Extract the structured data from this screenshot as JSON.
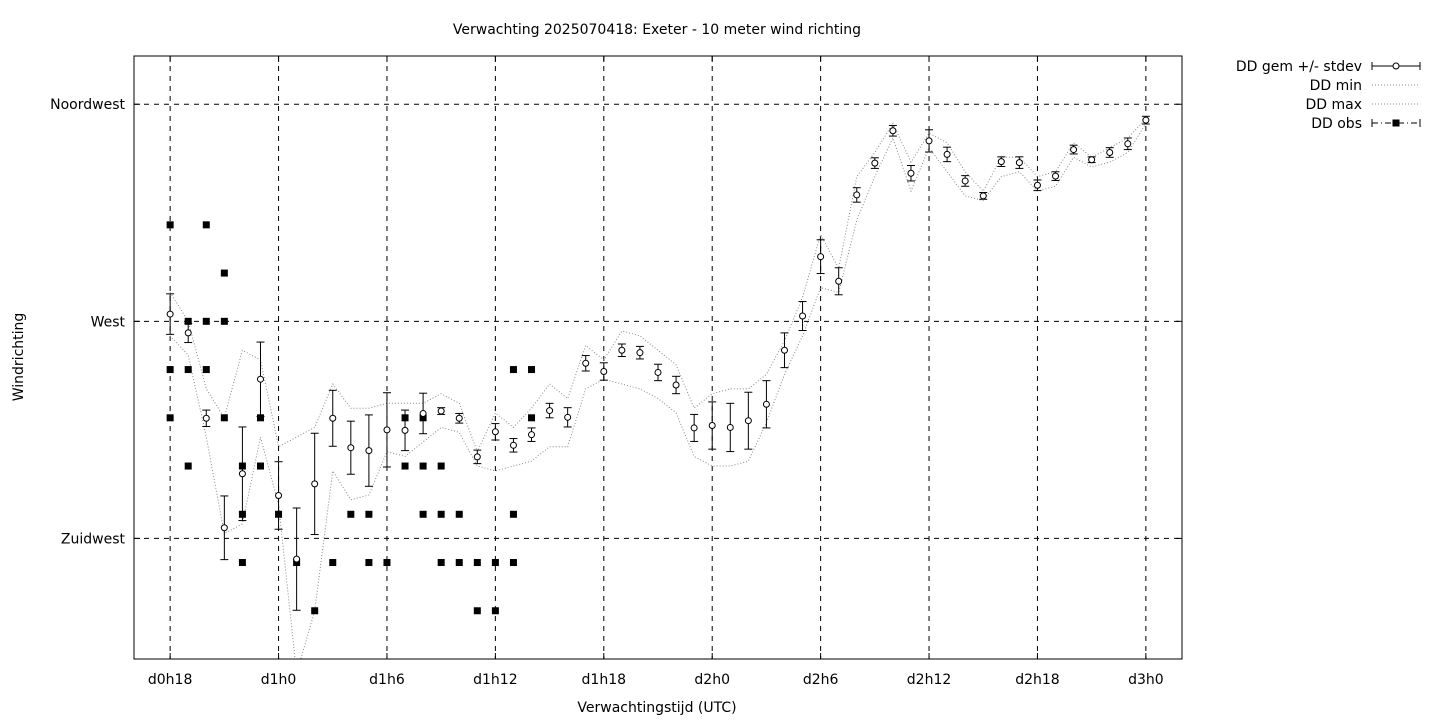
{
  "chart_data": {
    "type": "scatter",
    "title": "Verwachting 2025070418: Exeter - 10 meter wind richting",
    "xlabel": "Verwachtingstijd (UTC)",
    "ylabel": "Windrichting",
    "x_unit": "hours",
    "xlim": [
      16,
      74
    ],
    "ylim": [
      200,
      325
    ],
    "x_ticks": [
      {
        "value": 18,
        "label": "d0h18"
      },
      {
        "value": 24,
        "label": "d1h0"
      },
      {
        "value": 30,
        "label": "d1h6"
      },
      {
        "value": 36,
        "label": "d1h12"
      },
      {
        "value": 42,
        "label": "d1h18"
      },
      {
        "value": 48,
        "label": "d2h0"
      },
      {
        "value": 54,
        "label": "d2h6"
      },
      {
        "value": 60,
        "label": "d2h12"
      },
      {
        "value": 66,
        "label": "d2h18"
      },
      {
        "value": 72,
        "label": "d3h0"
      }
    ],
    "y_ticks": [
      {
        "value": 225,
        "label": "Zuidwest"
      },
      {
        "value": 270,
        "label": "West"
      },
      {
        "value": 315,
        "label": "Noordwest"
      }
    ],
    "grid": true,
    "legend_position": "outside-top-right",
    "series": [
      {
        "name": "DD gem +/- stdev",
        "style": "errorbars-open-circle",
        "x": [
          18,
          19,
          20,
          21,
          22,
          23,
          24,
          25,
          26,
          27,
          28,
          29,
          30,
          31,
          32,
          33,
          34,
          35,
          36,
          37,
          38,
          39,
          40,
          41,
          42,
          43,
          44,
          45,
          46,
          47,
          48,
          49,
          50,
          51,
          52,
          53,
          54,
          55,
          56,
          57,
          58,
          59,
          60,
          61,
          62,
          63,
          64,
          65,
          66,
          67,
          68,
          69,
          70,
          71,
          72
        ],
        "mean": [
          271.5,
          267.6,
          249.9,
          227.2,
          238.4,
          258.0,
          233.9,
          220.7,
          236.3,
          249.9,
          243.8,
          243.2,
          247.5,
          247.4,
          250.9,
          251.4,
          249.9,
          241.9,
          247.1,
          244.3,
          246.5,
          251.5,
          250.1,
          261.3,
          259.6,
          264.0,
          263.5,
          259.4,
          256.8,
          247.9,
          248.4,
          248.0,
          249.4,
          252.8,
          264.0,
          271.1,
          283.4,
          278.3,
          296.2,
          302.8,
          309.5,
          300.7,
          307.4,
          304.6,
          299.1,
          296.0,
          303.1,
          302.9,
          298.2,
          300.1,
          305.6,
          303.5,
          305.0,
          306.8,
          311.7
        ],
        "stdev": [
          4.2,
          2.0,
          1.7,
          6.6,
          9.7,
          7.7,
          7.0,
          10.6,
          10.5,
          5.8,
          5.5,
          7.4,
          7.7,
          4.2,
          4.2,
          0.7,
          1.0,
          1.4,
          1.7,
          1.4,
          1.4,
          1.5,
          2.0,
          1.6,
          1.8,
          1.3,
          1.3,
          1.7,
          1.8,
          2.8,
          4.9,
          5.0,
          5.9,
          4.9,
          3.6,
          3.0,
          3.5,
          2.8,
          1.5,
          1.1,
          1.1,
          1.6,
          2.3,
          1.5,
          1.1,
          0.7,
          1.0,
          1.2,
          1.1,
          0.9,
          0.9,
          0.6,
          1.0,
          1.2,
          0.8
        ]
      },
      {
        "name": "DD min",
        "style": "dotted-line",
        "x": [
          18,
          19,
          20,
          21,
          22,
          23,
          24,
          25,
          26,
          27,
          28,
          29,
          30,
          31,
          32,
          33,
          34,
          35,
          36,
          37,
          38,
          39,
          40,
          41,
          42,
          43,
          44,
          45,
          46,
          47,
          48,
          49,
          50,
          51,
          52,
          53,
          54,
          55,
          56,
          57,
          58,
          59,
          60,
          61,
          62,
          63,
          64,
          65,
          66,
          67,
          68,
          69,
          70,
          71,
          72
        ],
        "values": [
          267.0,
          263.0,
          246.0,
          226.0,
          228.0,
          246.0,
          232.0,
          197.0,
          210.0,
          239.0,
          233.0,
          234.0,
          243.0,
          242.0,
          245.0,
          248.0,
          247.0,
          240.0,
          239.0,
          240.0,
          241.0,
          244.0,
          244.0,
          256.0,
          258.0,
          257.0,
          256.0,
          254.0,
          251.0,
          242.0,
          240.0,
          240.0,
          241.0,
          249.0,
          259.0,
          267.0,
          277.0,
          276.0,
          291.0,
          300.0,
          308.0,
          297.0,
          306.0,
          301.0,
          296.0,
          295.0,
          300.0,
          301.0,
          297.0,
          298.0,
          304.0,
          302.0,
          303.0,
          305.0,
          311.0
        ]
      },
      {
        "name": "DD max",
        "style": "dotted-line",
        "x": [
          18,
          19,
          20,
          21,
          22,
          23,
          24,
          25,
          26,
          27,
          28,
          29,
          30,
          31,
          32,
          33,
          34,
          35,
          36,
          37,
          38,
          39,
          40,
          41,
          42,
          43,
          44,
          45,
          46,
          47,
          48,
          49,
          50,
          51,
          52,
          53,
          54,
          55,
          56,
          57,
          58,
          59,
          60,
          61,
          62,
          63,
          64,
          65,
          66,
          67,
          68,
          69,
          70,
          71,
          72
        ],
        "values": [
          276.0,
          270.0,
          256.0,
          250.0,
          264.0,
          262.0,
          244.0,
          246.0,
          248.0,
          257.0,
          252.0,
          252.0,
          253.0,
          253.0,
          253.0,
          255.0,
          253.0,
          243.0,
          251.0,
          248.0,
          252.0,
          257.0,
          254.0,
          265.0,
          262.0,
          268.0,
          267.0,
          264.0,
          261.0,
          252.0,
          255.0,
          256.0,
          256.0,
          259.0,
          266.0,
          275.0,
          288.0,
          281.0,
          300.0,
          305.0,
          311.0,
          303.0,
          309.0,
          307.0,
          301.0,
          297.0,
          304.0,
          304.0,
          300.0,
          301.0,
          307.0,
          304.0,
          306.0,
          308.0,
          312.0
        ]
      },
      {
        "name": "DD obs",
        "style": "filled-square-points",
        "points": [
          [
            18,
            290
          ],
          [
            18,
            260
          ],
          [
            18,
            250
          ],
          [
            19,
            270
          ],
          [
            19,
            260
          ],
          [
            19,
            240
          ],
          [
            20,
            290
          ],
          [
            20,
            270
          ],
          [
            20,
            260
          ],
          [
            21,
            280
          ],
          [
            21,
            270
          ],
          [
            21,
            250
          ],
          [
            22,
            240
          ],
          [
            22,
            230
          ],
          [
            22,
            220
          ],
          [
            23,
            250
          ],
          [
            23,
            240
          ],
          [
            24,
            230
          ],
          [
            25,
            220
          ],
          [
            26,
            210
          ],
          [
            27,
            220
          ],
          [
            28,
            230
          ],
          [
            29,
            230
          ],
          [
            29,
            220
          ],
          [
            30,
            220
          ],
          [
            31,
            250
          ],
          [
            31,
            240
          ],
          [
            32,
            250
          ],
          [
            32,
            240
          ],
          [
            32,
            230
          ],
          [
            33,
            240
          ],
          [
            33,
            230
          ],
          [
            33,
            220
          ],
          [
            34,
            230
          ],
          [
            34,
            220
          ],
          [
            35,
            220
          ],
          [
            35,
            210
          ],
          [
            36,
            220
          ],
          [
            36,
            210
          ],
          [
            37,
            260
          ],
          [
            37,
            230
          ],
          [
            37,
            220
          ],
          [
            38,
            260
          ],
          [
            38,
            250
          ]
        ]
      }
    ]
  }
}
